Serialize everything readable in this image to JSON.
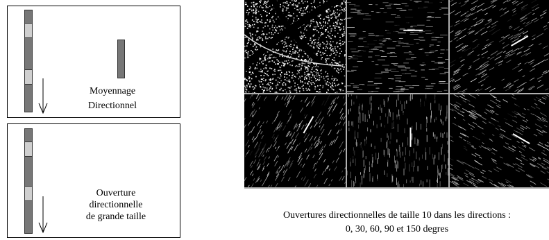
{
  "left_panels": {
    "top": {
      "label_line1": "Moyennage",
      "label_line2": "Directionnel"
    },
    "bottom": {
      "label_line1": "Ouverture",
      "label_line2": "directionnelle",
      "label_line3": "de grande taille"
    }
  },
  "mosaic": {
    "tiles": [
      {
        "kind": "original-texture",
        "icon": "leaf-texture"
      },
      {
        "kind": "directional-opening",
        "icon": "streaks-horizontal"
      },
      {
        "kind": "directional-opening",
        "icon": "streaks-30"
      },
      {
        "kind": "directional-opening",
        "icon": "streaks-60"
      },
      {
        "kind": "directional-opening",
        "icon": "streaks-90"
      },
      {
        "kind": "directional-opening",
        "icon": "streaks-150"
      }
    ],
    "separator_color": "#b0b0b0"
  },
  "caption": {
    "line1": "Ouvertures directionnelles de taille 10 dans les directions :",
    "line2": "0, 30, 60, 90 et 150 degres"
  }
}
